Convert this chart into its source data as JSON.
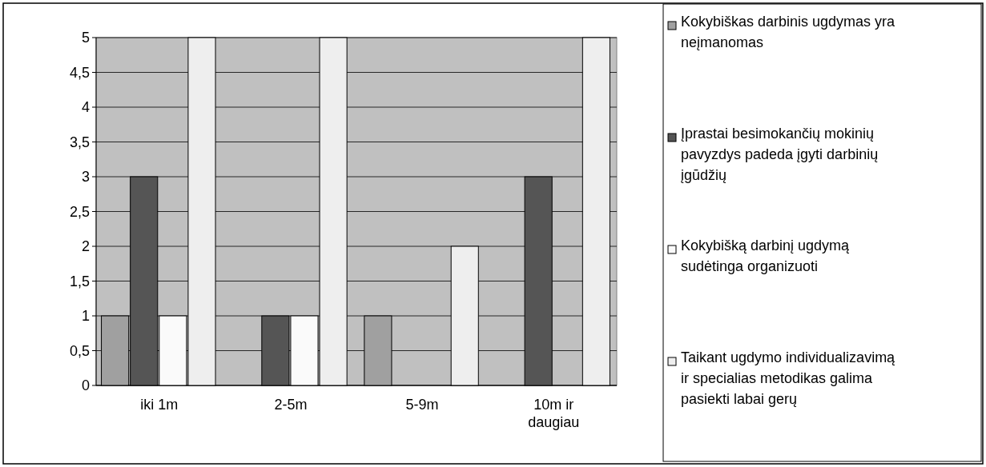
{
  "chart_data": {
    "type": "bar",
    "categories": [
      "iki 1m",
      "2-5m",
      "5-9m",
      "10m ir daugiau"
    ],
    "series": [
      {
        "name": "Kokybiškas darbinis ugdymas yra neįmanomas",
        "color": "#a0a0a0",
        "values": [
          1,
          0,
          1,
          0
        ]
      },
      {
        "name": "Įprastai besimokančių mokinių pavyzdys padeda įgyti darbinių įgūdžių",
        "color": "#555555",
        "values": [
          3,
          1,
          0,
          3
        ]
      },
      {
        "name": "Kokybišką darbinį ugdymą sudėtinga organizuoti",
        "color": "#fafafa",
        "values": [
          1,
          1,
          0,
          0
        ]
      },
      {
        "name": "Taikant ugdymo individualizavimą ir specialias metodikas galima pasiekti labai gerų",
        "color": "#eeeeee",
        "values": [
          5,
          5,
          2,
          5
        ]
      }
    ],
    "ylim": [
      0,
      5
    ],
    "yticks": [
      0,
      {
        "value": 0.5,
        "label": "0,5"
      },
      1,
      {
        "value": 1.5,
        "label": "1,5"
      },
      2,
      {
        "value": 2.5,
        "label": "2,5"
      },
      3,
      {
        "value": 3.5,
        "label": "3,5"
      },
      4,
      {
        "value": 4.5,
        "label": "4,5"
      },
      5
    ],
    "grid": "y",
    "legend": "right"
  }
}
